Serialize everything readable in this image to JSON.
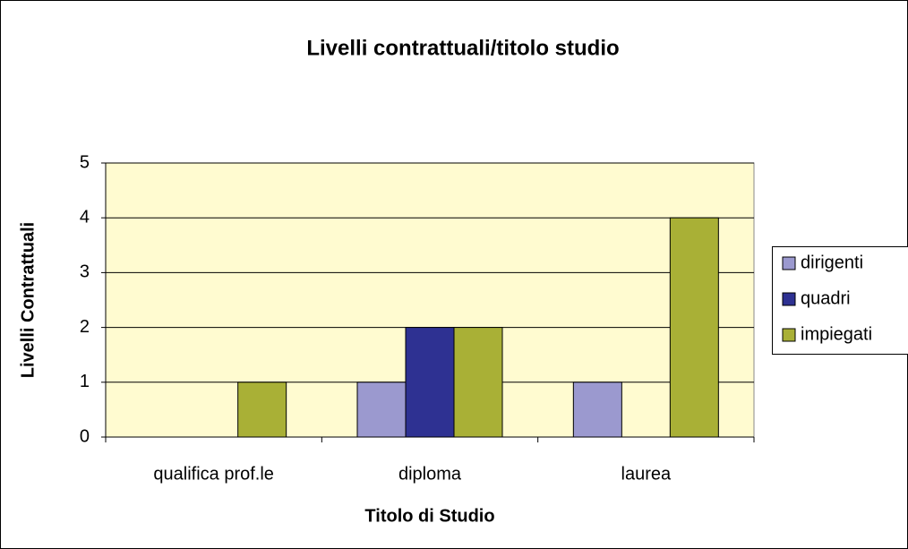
{
  "chart_data": {
    "type": "bar",
    "title": "Livelli contrattuali/titolo studio",
    "xlabel": "Titolo di Studio",
    "ylabel": "Livelli Contrattuali",
    "categories": [
      "qualifica prof.le",
      "diploma",
      "laurea"
    ],
    "series": [
      {
        "name": "dirigenti",
        "color": "#9b99cf",
        "values": [
          0,
          1,
          1
        ]
      },
      {
        "name": "quadri",
        "color": "#2e3192",
        "values": [
          0,
          2,
          0
        ]
      },
      {
        "name": "impiegati",
        "color": "#a9b036",
        "values": [
          1,
          2,
          4
        ]
      }
    ],
    "ylim": [
      0,
      5
    ],
    "yticks": [
      0,
      1,
      2,
      3,
      4,
      5
    ],
    "grid": true,
    "legend": "right"
  }
}
